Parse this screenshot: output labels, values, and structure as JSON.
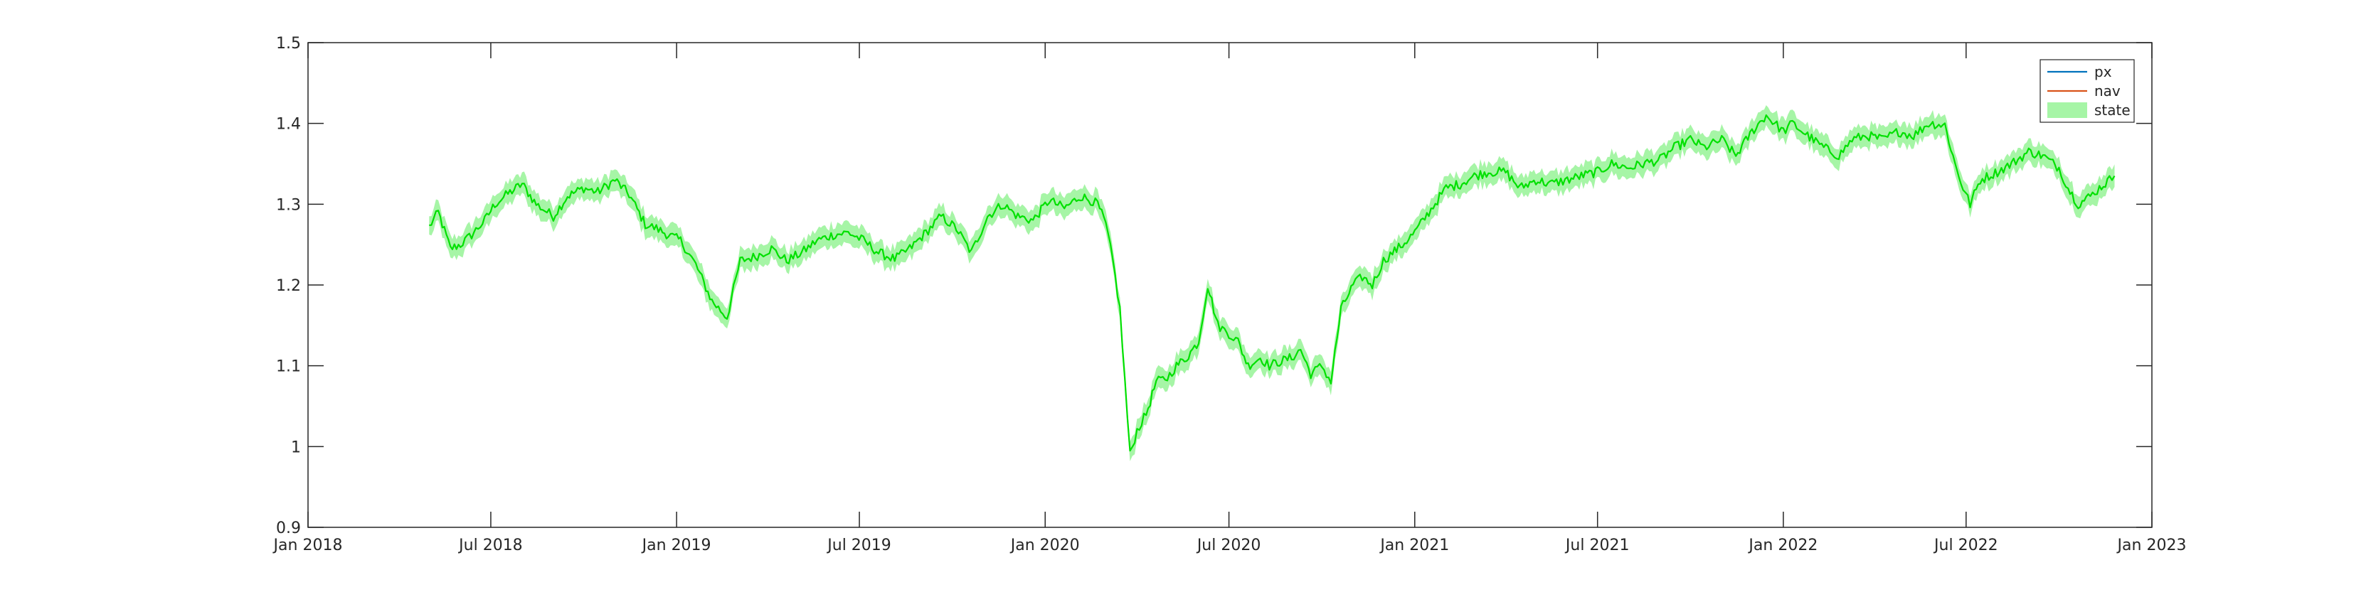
{
  "chart_data": {
    "type": "line",
    "title": "",
    "xlabel": "",
    "ylabel": "",
    "x_axis": {
      "type": "date",
      "range": [
        "2018-01-01",
        "2023-01-01"
      ],
      "ticks": [
        {
          "date": "2018-01-01",
          "label": "Jan 2018"
        },
        {
          "date": "2018-07-01",
          "label": "Jul 2018"
        },
        {
          "date": "2019-01-01",
          "label": "Jan 2019"
        },
        {
          "date": "2019-07-01",
          "label": "Jul 2019"
        },
        {
          "date": "2020-01-01",
          "label": "Jan 2020"
        },
        {
          "date": "2020-07-01",
          "label": "Jul 2020"
        },
        {
          "date": "2021-01-01",
          "label": "Jan 2021"
        },
        {
          "date": "2021-07-01",
          "label": "Jul 2021"
        },
        {
          "date": "2022-01-01",
          "label": "Jan 2022"
        },
        {
          "date": "2022-07-01",
          "label": "Jul 2022"
        },
        {
          "date": "2023-01-01",
          "label": "Jan 2023"
        }
      ]
    },
    "y_axis": {
      "range": [
        0.9,
        1.5
      ],
      "ticks": [
        {
          "value": 0.9,
          "label": "0.9"
        },
        {
          "value": 1.0,
          "label": "1"
        },
        {
          "value": 1.1,
          "label": "1.1"
        },
        {
          "value": 1.2,
          "label": "1.2"
        },
        {
          "value": 1.3,
          "label": "1.3"
        },
        {
          "value": 1.4,
          "label": "1.4"
        },
        {
          "value": 1.5,
          "label": "1.5"
        }
      ]
    },
    "grid": false,
    "legend": {
      "placement": "top-right",
      "entries": [
        {
          "name": "px",
          "kind": "line",
          "color": "#0072BD"
        },
        {
          "name": "nav",
          "kind": "line",
          "color": "#D95319"
        },
        {
          "name": "state",
          "kind": "band",
          "color": "#A6F5A6"
        }
      ]
    },
    "series": [
      {
        "name": "state",
        "line_color": "#00E000",
        "band_color": "#A6F5A6",
        "band_halfwidth": 0.013,
        "x": [
          "2018-05-01",
          "2018-05-10",
          "2018-05-22",
          "2018-06-01",
          "2018-06-12",
          "2018-06-25",
          "2018-07-05",
          "2018-07-18",
          "2018-08-01",
          "2018-08-15",
          "2018-09-01",
          "2018-09-15",
          "2018-10-01",
          "2018-10-15",
          "2018-11-01",
          "2018-11-15",
          "2018-12-01",
          "2018-12-12",
          "2018-12-24",
          "2019-01-05",
          "2019-01-20",
          "2019-02-05",
          "2019-02-20",
          "2019-03-05",
          "2019-03-20",
          "2019-04-05",
          "2019-04-20",
          "2019-05-05",
          "2019-05-20",
          "2019-06-05",
          "2019-06-20",
          "2019-07-05",
          "2019-07-20",
          "2019-08-05",
          "2019-08-20",
          "2019-09-05",
          "2019-09-20",
          "2019-10-05",
          "2019-10-20",
          "2019-11-05",
          "2019-11-20",
          "2019-12-05",
          "2019-12-20",
          "2020-01-05",
          "2020-01-20",
          "2020-02-05",
          "2020-02-15",
          "2020-02-22",
          "2020-03-01",
          "2020-03-08",
          "2020-03-15",
          "2020-03-20",
          "2020-03-25",
          "2020-04-01",
          "2020-04-10",
          "2020-04-20",
          "2020-05-01",
          "2020-05-10",
          "2020-05-20",
          "2020-06-01",
          "2020-06-10",
          "2020-06-20",
          "2020-07-01",
          "2020-07-10",
          "2020-07-20",
          "2020-08-01",
          "2020-08-10",
          "2020-08-20",
          "2020-09-01",
          "2020-09-10",
          "2020-09-20",
          "2020-10-01",
          "2020-10-10",
          "2020-10-20",
          "2020-11-01",
          "2020-11-10",
          "2020-11-20",
          "2020-12-01",
          "2020-12-10",
          "2020-12-20",
          "2021-01-01",
          "2021-01-15",
          "2021-02-01",
          "2021-02-15",
          "2021-03-01",
          "2021-03-15",
          "2021-04-01",
          "2021-04-15",
          "2021-05-01",
          "2021-05-15",
          "2021-06-01",
          "2021-06-15",
          "2021-07-01",
          "2021-07-15",
          "2021-08-01",
          "2021-08-15",
          "2021-09-01",
          "2021-09-15",
          "2021-10-01",
          "2021-10-15",
          "2021-11-01",
          "2021-11-15",
          "2021-12-01",
          "2021-12-15",
          "2022-01-01",
          "2022-01-10",
          "2022-01-25",
          "2022-02-10",
          "2022-02-25",
          "2022-03-10",
          "2022-03-25",
          "2022-04-10",
          "2022-04-25",
          "2022-05-10",
          "2022-05-25",
          "2022-06-10",
          "2022-06-20",
          "2022-06-28",
          "2022-07-05",
          "2022-07-15",
          "2022-08-01",
          "2022-08-15",
          "2022-09-01",
          "2022-09-15",
          "2022-10-01",
          "2022-10-10",
          "2022-10-20",
          "2022-11-01",
          "2022-11-10",
          "2022-11-20",
          "2022-11-25"
        ],
        "values": [
          1.272,
          1.29,
          1.245,
          1.25,
          1.262,
          1.28,
          1.3,
          1.313,
          1.325,
          1.3,
          1.285,
          1.31,
          1.32,
          1.315,
          1.33,
          1.312,
          1.275,
          1.27,
          1.262,
          1.255,
          1.225,
          1.18,
          1.16,
          1.23,
          1.235,
          1.245,
          1.23,
          1.24,
          1.255,
          1.262,
          1.265,
          1.255,
          1.24,
          1.232,
          1.245,
          1.265,
          1.285,
          1.27,
          1.24,
          1.285,
          1.3,
          1.285,
          1.28,
          1.305,
          1.295,
          1.31,
          1.305,
          1.3,
          1.275,
          1.23,
          1.17,
          1.08,
          0.99,
          1.02,
          1.04,
          1.08,
          1.085,
          1.1,
          1.11,
          1.13,
          1.2,
          1.15,
          1.14,
          1.13,
          1.1,
          1.11,
          1.1,
          1.105,
          1.11,
          1.12,
          1.09,
          1.1,
          1.08,
          1.17,
          1.2,
          1.21,
          1.2,
          1.23,
          1.24,
          1.25,
          1.265,
          1.29,
          1.32,
          1.325,
          1.335,
          1.34,
          1.34,
          1.32,
          1.33,
          1.325,
          1.33,
          1.335,
          1.34,
          1.35,
          1.345,
          1.35,
          1.355,
          1.37,
          1.38,
          1.37,
          1.38,
          1.36,
          1.39,
          1.41,
          1.39,
          1.4,
          1.385,
          1.37,
          1.36,
          1.38,
          1.385,
          1.38,
          1.39,
          1.385,
          1.4,
          1.398,
          1.35,
          1.32,
          1.3,
          1.33,
          1.34,
          1.35,
          1.365,
          1.36,
          1.345,
          1.32,
          1.3,
          1.31,
          1.32,
          1.33,
          1.335
        ]
      }
    ]
  }
}
